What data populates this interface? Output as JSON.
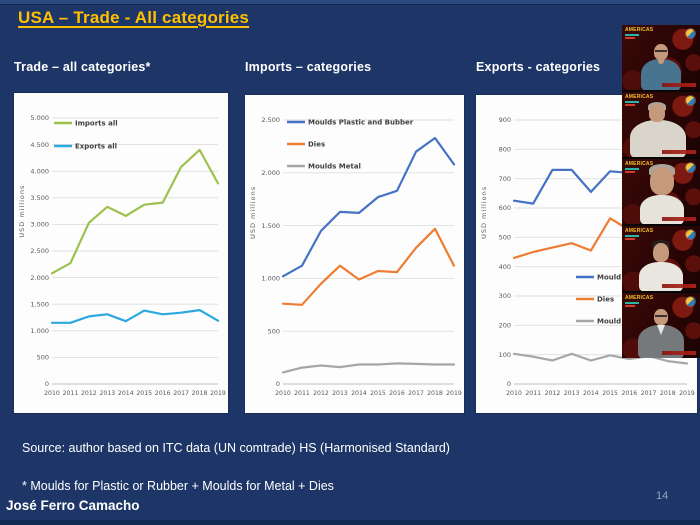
{
  "slide": {
    "title": "USA – Trade - All categories",
    "page_number": "14",
    "author": "José Ferro Camacho",
    "source_note": "Source: author based on ITC data (UN comtrade) HS (Harmonised Standard)",
    "footnote": "* Moulds for Plastic or Rubber + Moulds for Metal + Dies",
    "colors": {
      "background": "#1E3667",
      "title_text": "#FFC000",
      "heading_text": "#FFFFFF",
      "panel": "#FDFDFD",
      "page_number": "#97A3BD"
    }
  },
  "webcam_strip": {
    "logo_text": "AMERICAS",
    "participants": [
      {
        "desc": "bald man with glasses in blue shirt, hand on chin",
        "variant": "p1"
      },
      {
        "desc": "gray-haired man in light shirt",
        "variant": "p2"
      },
      {
        "desc": "gray-haired man close-up in white shirt",
        "variant": "p3"
      },
      {
        "desc": "dark-haired man in white shirt",
        "variant": "p4"
      },
      {
        "desc": "bald man with glasses in gray jacket",
        "variant": "p5"
      }
    ]
  },
  "chart_data": [
    {
      "type": "line",
      "title": "Trade – all categories*",
      "ylabel": "USD millions",
      "ylim": [
        0,
        5000
      ],
      "ystep": 500,
      "dot_thousands": true,
      "grid": true,
      "legend": "inside-top-left",
      "legend_pos": [
        40,
        30
      ],
      "legend_gap": 23,
      "categories": [
        "2010",
        "2011",
        "2012",
        "2013",
        "2014",
        "2015",
        "2016",
        "2017",
        "2018",
        "2019"
      ],
      "series": [
        {
          "name": "Imports all",
          "color": "#9CC14D",
          "values": [
            2080,
            2270,
            3030,
            3330,
            3160,
            3370,
            3410,
            4080,
            4400,
            3770
          ]
        },
        {
          "name": "Exports all",
          "color": "#2CA8DF",
          "values": [
            1150,
            1150,
            1270,
            1310,
            1180,
            1380,
            1310,
            1340,
            1390,
            1190
          ]
        }
      ]
    },
    {
      "type": "line",
      "title": "Imports – categories",
      "ylabel": "USD millions",
      "ylim": [
        0,
        2500
      ],
      "ystep": 500,
      "dot_thousands": true,
      "grid": true,
      "legend": "inside-top-left",
      "legend_pos": [
        42,
        27
      ],
      "legend_gap": 22,
      "categories": [
        "2010",
        "2011",
        "2012",
        "2013",
        "2014",
        "2015",
        "2016",
        "2017",
        "2018",
        "2019"
      ],
      "series": [
        {
          "name": "Moulds Plastic and Bubber",
          "color": "#4472C4",
          "values": [
            1020,
            1120,
            1450,
            1630,
            1620,
            1770,
            1830,
            2200,
            2330,
            2080
          ]
        },
        {
          "name": "Dies",
          "color": "#ED7D31",
          "values": [
            760,
            750,
            950,
            1120,
            990,
            1070,
            1060,
            1290,
            1470,
            1120
          ]
        },
        {
          "name": "Moulds Metal",
          "color": "#A6A6A6",
          "values": [
            110,
            155,
            175,
            160,
            185,
            185,
            195,
            190,
            185,
            185
          ]
        }
      ]
    },
    {
      "type": "line",
      "title": "Exports - categories",
      "ylabel": "USD millions",
      "ylim": [
        0,
        900
      ],
      "ystep": 100,
      "dot_thousands": false,
      "grid": true,
      "legend": "inside-middle-right",
      "legend_pos": [
        100,
        182
      ],
      "legend_gap": 22,
      "occluded_by_video_overlay": true,
      "categories": [
        "2010",
        "2011",
        "2012",
        "2013",
        "2014",
        "2015",
        "2016",
        "2017",
        "2018",
        "2019"
      ],
      "series": [
        {
          "name": "Mould",
          "color": "#4472C4",
          "values": [
            625,
            615,
            730,
            730,
            655,
            725,
            720,
            null,
            null,
            null
          ]
        },
        {
          "name": "Dies",
          "color": "#ED7D31",
          "values": [
            430,
            450,
            465,
            480,
            455,
            565,
            525,
            null,
            null,
            null
          ]
        },
        {
          "name": "Mould",
          "color": "#A6A6A6",
          "values": [
            103,
            93,
            80,
            103,
            80,
            98,
            85,
            95,
            78,
            70
          ]
        }
      ]
    }
  ]
}
